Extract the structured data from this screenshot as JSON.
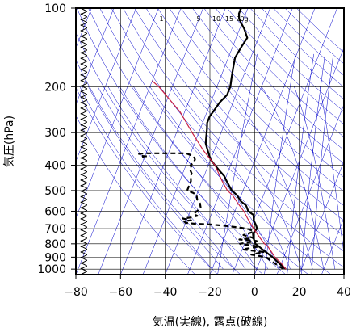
{
  "chart_data": {
    "type": "line",
    "title": "",
    "xlabel": "気温(実線), 露点(破線)",
    "ylabel": "気圧(hPa)",
    "xlim": [
      -80,
      40
    ],
    "ylim": [
      1050,
      100
    ],
    "y_scale": "log",
    "xticks": [
      -80,
      -60,
      -40,
      -20,
      0,
      20,
      40
    ],
    "xtick_labels": [
      "−80",
      "−60",
      "−40",
      "−20",
      "0",
      "20",
      "40"
    ],
    "yticks": [
      100,
      200,
      300,
      400,
      500,
      600,
      700,
      800,
      900,
      1000
    ],
    "ytick_labels": [
      "100",
      "200",
      "300",
      "400",
      "500",
      "600",
      "700",
      "800",
      "900",
      "1000"
    ],
    "mixing_ratio_labels": [
      "1",
      "5",
      "10",
      "15",
      "20g"
    ],
    "grid": true,
    "series": [
      {
        "kind": "temperature",
        "style": "solid",
        "color": "#000000",
        "points": [
          [
            13,
            1000
          ],
          [
            9,
            950
          ],
          [
            5,
            900
          ],
          [
            0,
            850
          ],
          [
            -5,
            800
          ],
          [
            -7,
            760
          ],
          [
            -8,
            730
          ],
          [
            -7,
            700
          ],
          [
            -8,
            680
          ],
          [
            -10,
            650
          ],
          [
            -11,
            620
          ],
          [
            -14,
            600
          ],
          [
            -16,
            570
          ],
          [
            -19,
            550
          ],
          [
            -22,
            520
          ],
          [
            -25,
            500
          ],
          [
            -27,
            480
          ],
          [
            -29,
            460
          ],
          [
            -31,
            440
          ],
          [
            -34,
            420
          ],
          [
            -37,
            400
          ],
          [
            -40,
            380
          ],
          [
            -42,
            360
          ],
          [
            -45,
            330
          ],
          [
            -46,
            310
          ],
          [
            -47,
            290
          ],
          [
            -48,
            275
          ],
          [
            -48,
            260
          ],
          [
            -47,
            245
          ],
          [
            -46,
            230
          ],
          [
            -44,
            215
          ],
          [
            -44,
            200
          ],
          [
            -45,
            185
          ],
          [
            -46,
            170
          ],
          [
            -47,
            155
          ],
          [
            -46,
            140
          ],
          [
            -45,
            130
          ],
          [
            -48,
            120
          ],
          [
            -50,
            115
          ],
          [
            -52,
            110
          ],
          [
            -53,
            105
          ],
          [
            -53,
            100
          ]
        ]
      },
      {
        "kind": "dewpoint",
        "style": "dashed",
        "color": "#000000",
        "points": [
          [
            12,
            1000
          ],
          [
            7,
            950
          ],
          [
            2,
            900
          ],
          [
            -5,
            880
          ],
          [
            0,
            860
          ],
          [
            -10,
            840
          ],
          [
            -3,
            820
          ],
          [
            -12,
            800
          ],
          [
            -5,
            780
          ],
          [
            -13,
            770
          ],
          [
            -7,
            760
          ],
          [
            -12,
            740
          ],
          [
            -8,
            720
          ],
          [
            -10,
            705
          ],
          [
            -14,
            695
          ],
          [
            -20,
            685
          ],
          [
            -28,
            675
          ],
          [
            -36,
            670
          ],
          [
            -40,
            665
          ],
          [
            -41,
            655
          ],
          [
            -38,
            650
          ],
          [
            -42,
            640
          ],
          [
            -39,
            635
          ],
          [
            -36,
            625
          ],
          [
            -38,
            615
          ],
          [
            -37,
            600
          ],
          [
            -36,
            580
          ],
          [
            -37,
            560
          ],
          [
            -39,
            540
          ],
          [
            -40,
            520
          ],
          [
            -42,
            510
          ],
          [
            -45,
            500
          ],
          [
            -45,
            480
          ],
          [
            -45,
            460
          ],
          [
            -46,
            440
          ],
          [
            -46,
            430
          ],
          [
            -47,
            420
          ],
          [
            -47,
            410
          ],
          [
            -48,
            400
          ],
          [
            -47,
            390
          ],
          [
            -47,
            380
          ],
          [
            -48,
            370
          ],
          [
            -50,
            365
          ],
          [
            -52,
            360
          ],
          [
            -58,
            360
          ],
          [
            -64,
            360
          ],
          [
            -70,
            360
          ],
          [
            -73,
            362
          ],
          [
            -72,
            368
          ],
          [
            -69,
            370
          ],
          [
            -71,
            373
          ]
        ]
      },
      {
        "kind": "parcel",
        "style": "solid",
        "color": "#cc2244",
        "points": [
          [
            13,
            1000
          ],
          [
            10,
            950
          ],
          [
            6,
            900
          ],
          [
            3,
            850
          ],
          [
            1,
            820
          ],
          [
            -1,
            800
          ],
          [
            -4,
            760
          ],
          [
            -7,
            720
          ],
          [
            -10,
            680
          ],
          [
            -13,
            640
          ],
          [
            -16,
            600
          ],
          [
            -20,
            560
          ],
          [
            -24,
            520
          ],
          [
            -27,
            500
          ],
          [
            -31,
            460
          ],
          [
            -37,
            400
          ],
          [
            -45,
            350
          ],
          [
            -53,
            300
          ],
          [
            -62,
            250
          ],
          [
            -70,
            220
          ],
          [
            -76,
            200
          ],
          [
            -80,
            190
          ]
        ]
      }
    ],
    "wind_barbs": {
      "x_data": -75,
      "count": 48,
      "color": "#000000"
    },
    "reference_lines": {
      "grid_color": "#000000",
      "skewed_isotherm_color": "#0000cc",
      "dry_adiabat_color": "#0000cc",
      "moist_adiabat_color": "#0000cc",
      "mixing_ratio_color": "#0000cc"
    }
  }
}
